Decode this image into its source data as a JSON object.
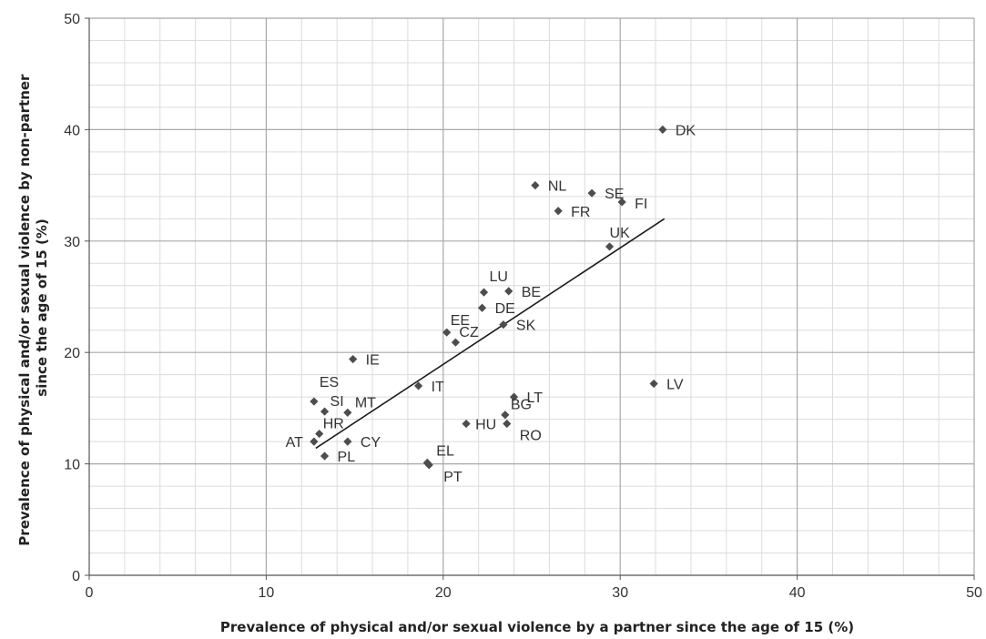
{
  "chart_data": {
    "type": "scatter",
    "title": "",
    "xlabel": "Prevalence of physical and/or sexual violence by a partner since the age of 15 (%)",
    "ylabel_lines": [
      "Prevalence of physical and/or sexual violence by non-partner",
      "since the age of 15 (%)"
    ],
    "xlim": [
      0,
      50
    ],
    "ylim": [
      0,
      50
    ],
    "x_major_ticks": [
      0,
      10,
      20,
      30,
      40,
      50
    ],
    "y_major_ticks": [
      0,
      10,
      20,
      30,
      40,
      50
    ],
    "x_minor_step": 2,
    "y_minor_step": 2,
    "grid": true,
    "marker_color": "#4d4d4d",
    "trendline": {
      "x": [
        12.8,
        32.5
      ],
      "y": [
        11.4,
        32.0
      ]
    },
    "points": [
      {
        "label": "DK",
        "x": 32.4,
        "y": 40.0
      },
      {
        "label": "NL",
        "x": 25.2,
        "y": 35.0
      },
      {
        "label": "SE",
        "x": 28.4,
        "y": 34.3
      },
      {
        "label": "FI",
        "x": 30.1,
        "y": 33.5
      },
      {
        "label": "FR",
        "x": 26.5,
        "y": 32.7
      },
      {
        "label": "UK",
        "x": 29.4,
        "y": 29.5
      },
      {
        "label": "LU",
        "x": 22.3,
        "y": 25.4
      },
      {
        "label": "BE",
        "x": 23.7,
        "y": 25.5
      },
      {
        "label": "DE",
        "x": 22.2,
        "y": 24.0
      },
      {
        "label": "SK",
        "x": 23.4,
        "y": 22.5
      },
      {
        "label": "EE",
        "x": 20.2,
        "y": 21.8
      },
      {
        "label": "CZ",
        "x": 20.7,
        "y": 20.9
      },
      {
        "label": "IE",
        "x": 14.9,
        "y": 19.4
      },
      {
        "label": "IT",
        "x": 18.6,
        "y": 17.0
      },
      {
        "label": "LV",
        "x": 31.9,
        "y": 17.2
      },
      {
        "label": "LT",
        "x": 24.0,
        "y": 16.0
      },
      {
        "label": "ES",
        "x": 12.7,
        "y": 15.6
      },
      {
        "label": "SI",
        "x": 13.3,
        "y": 14.7
      },
      {
        "label": "MT",
        "x": 14.6,
        "y": 14.6
      },
      {
        "label": "BG",
        "x": 23.5,
        "y": 14.4
      },
      {
        "label": "HU",
        "x": 21.3,
        "y": 13.6
      },
      {
        "label": "RO",
        "x": 23.6,
        "y": 13.6
      },
      {
        "label": "HR",
        "x": 13.0,
        "y": 12.7
      },
      {
        "label": "AT",
        "x": 12.7,
        "y": 12.0
      },
      {
        "label": "CY",
        "x": 14.6,
        "y": 12.0
      },
      {
        "label": "PL",
        "x": 13.3,
        "y": 10.7
      },
      {
        "label": "EL",
        "x": 19.1,
        "y": 10.1
      },
      {
        "label": "PT",
        "x": 19.2,
        "y": 9.9
      }
    ]
  }
}
